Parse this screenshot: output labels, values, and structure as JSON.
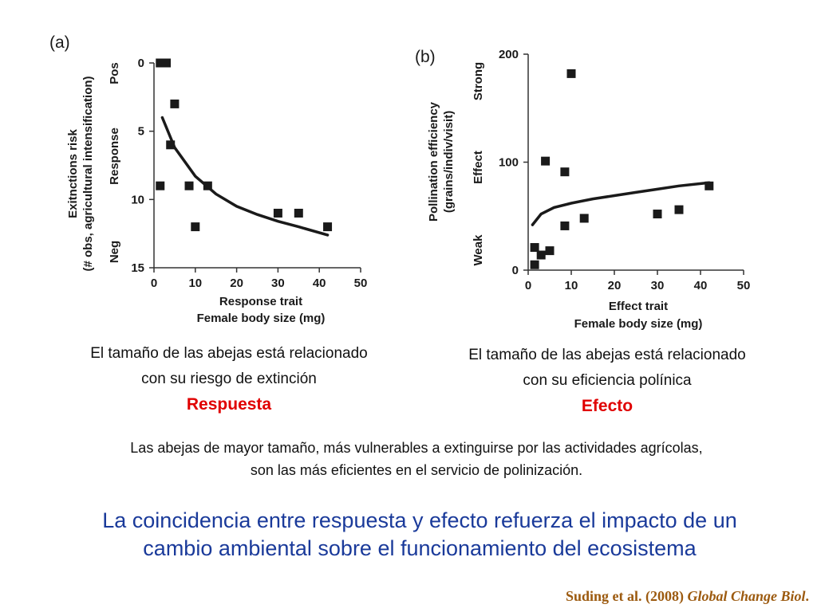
{
  "chart_data": [
    {
      "type": "scatter",
      "panel": "(a)",
      "xlabel": "Response trait",
      "xlabel2": "Female body size (mg)",
      "ylabel": "Exitnctions risk",
      "ylabel2": "(# obs, agricultural intensification)",
      "y_side_labels": {
        "top": "Pos",
        "middle": "Response",
        "bottom": "Neg"
      },
      "xlim": [
        0,
        50
      ],
      "ylim": [
        15,
        0
      ],
      "y_inverted": true,
      "xticks": [
        0,
        10,
        20,
        30,
        40,
        50
      ],
      "yticks": [
        0,
        5,
        10,
        15
      ],
      "points": [
        [
          1.5,
          0
        ],
        [
          2.5,
          0
        ],
        [
          3,
          0
        ],
        [
          5,
          3
        ],
        [
          4,
          6
        ],
        [
          1.5,
          9
        ],
        [
          8.5,
          9
        ],
        [
          13,
          9
        ],
        [
          10,
          12
        ],
        [
          30,
          11
        ],
        [
          35,
          11
        ],
        [
          42,
          12
        ]
      ],
      "fit_curve": [
        [
          2,
          4.0
        ],
        [
          5,
          6.2
        ],
        [
          10,
          8.3
        ],
        [
          15,
          9.6
        ],
        [
          20,
          10.5
        ],
        [
          25,
          11.1
        ],
        [
          30,
          11.6
        ],
        [
          35,
          12.0
        ],
        [
          42,
          12.6
        ]
      ]
    },
    {
      "type": "scatter",
      "panel": "(b)",
      "xlabel": "Effect trait",
      "xlabel2": "Female body size (mg)",
      "ylabel": "Pollination efficiency",
      "ylabel2": "(grains/indiv/visit)",
      "y_side_labels": {
        "top": "Strong",
        "middle": "Effect",
        "bottom": "Weak"
      },
      "xlim": [
        0,
        50
      ],
      "ylim": [
        0,
        200
      ],
      "xticks": [
        0,
        10,
        20,
        30,
        40,
        50
      ],
      "yticks": [
        0,
        100,
        200
      ],
      "points": [
        [
          1.5,
          5
        ],
        [
          1.5,
          21
        ],
        [
          3,
          14
        ],
        [
          5,
          18
        ],
        [
          4,
          101
        ],
        [
          8.5,
          91
        ],
        [
          8.5,
          41
        ],
        [
          10,
          182
        ],
        [
          13,
          48
        ],
        [
          30,
          52
        ],
        [
          35,
          56
        ],
        [
          42,
          78
        ]
      ],
      "fit_curve": [
        [
          1,
          42
        ],
        [
          3,
          52
        ],
        [
          6,
          58
        ],
        [
          10,
          62
        ],
        [
          15,
          66
        ],
        [
          20,
          69
        ],
        [
          25,
          72
        ],
        [
          30,
          75
        ],
        [
          35,
          78
        ],
        [
          42,
          81
        ]
      ]
    }
  ],
  "captions": {
    "left_line1": "El tamaño de las abejas está relacionado",
    "left_line2": "con su riesgo de extinción",
    "left_tag": "Respuesta",
    "right_line1": "El tamaño de las abejas está relacionado",
    "right_line2": "con su eficiencia polínica",
    "right_tag": "Efecto"
  },
  "middle_text": {
    "line1": "Las abejas de mayor tamaño, más vulnerables a extinguirse por las actividades agrícolas,",
    "line2": "son las más eficientes en el servicio de polinización."
  },
  "conclusion": {
    "line1": "La coincidencia entre respuesta y efecto refuerza el impacto de un",
    "line2": "cambio ambiental sobre el funcionamiento del ecosistema"
  },
  "citation": {
    "authors": "Suding et al. (2008)",
    "journal": "Global Change Biol",
    "end": "."
  },
  "colors": {
    "marker": "#1a1a1a",
    "tag_red": "#e00000",
    "conclusion_blue": "#1a3a9a",
    "citation_brown": "#9c5a0f"
  }
}
